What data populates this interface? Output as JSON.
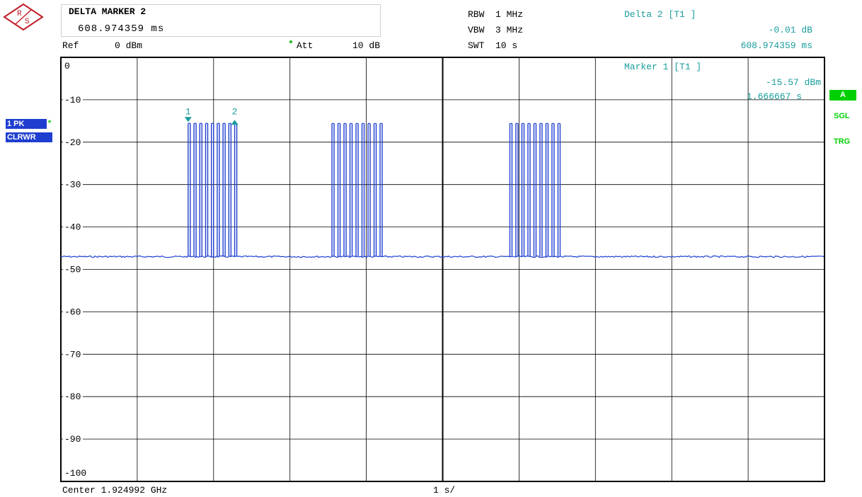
{
  "header": {
    "marker_title": "DELTA MARKER 2",
    "marker_value": "608.974359 ms",
    "ref_label": "Ref",
    "ref_value": "0 dBm",
    "att_star": "*",
    "att_label": "Att",
    "att_value": "10 dB",
    "rbw": "RBW  1 MHz",
    "vbw": "VBW  3 MHz",
    "swt": "SWT  10 s",
    "delta_title": "Delta 2 [T1 ]",
    "delta_level": "-0.01 dB",
    "delta_time": "608.974359 ms"
  },
  "marker1": {
    "title": "Marker 1 [T1 ]",
    "level": "-15.57 dBm",
    "time": "1.666667 s"
  },
  "markers": [
    {
      "label": "1",
      "time_s": 1.667
    },
    {
      "label": "2",
      "time_s": 2.276
    }
  ],
  "left_badges": {
    "trace": "1 PK",
    "star": "*",
    "mode": "CLRWR"
  },
  "right_badges": {
    "a": "A",
    "sgl": "SGL",
    "trg": "TRG"
  },
  "footer": {
    "center": "Center 1.924992 GHz",
    "span": "1 s/"
  },
  "colors": {
    "trace": "#1f3fd0",
    "marker_text": "#1a9c9c",
    "status_green": "#00d000",
    "grid": "#000000"
  },
  "chart_data": {
    "type": "line",
    "xlabel": "",
    "ylabel": "",
    "xlim": [
      0,
      10
    ],
    "ylim": [
      -100,
      0
    ],
    "y_ticks": [
      "0",
      "-10",
      "-20",
      "-30",
      "-40",
      "-50",
      "-60",
      "-70",
      "-80",
      "-90",
      "-100"
    ],
    "noise_floor_dbm": -47,
    "bursts": [
      {
        "start_s": 1.667,
        "end_s": 2.276,
        "peak_dbm": -15.57,
        "pulses": 9
      },
      {
        "start_s": 3.55,
        "end_s": 4.18,
        "peak_dbm": -15.6,
        "pulses": 9
      },
      {
        "start_s": 5.88,
        "end_s": 6.51,
        "peak_dbm": -15.6,
        "pulses": 9
      }
    ]
  }
}
